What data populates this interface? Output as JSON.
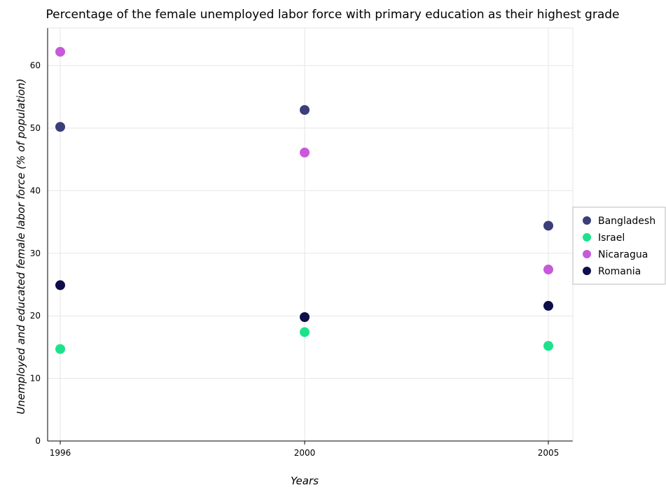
{
  "chart_data": {
    "type": "scatter",
    "title": "Percentage of the female unemployed labor force with primary education as their highest grade",
    "xlabel": "Years",
    "ylabel": "Unemployed and educated female labor force (% of population)",
    "categories": [
      "1996",
      "2000",
      "2005"
    ],
    "ylim": [
      0,
      66
    ],
    "yticks": [
      0,
      10,
      20,
      30,
      40,
      50,
      60
    ],
    "grid": true,
    "legend_position": "right",
    "series": [
      {
        "name": "Bangladesh",
        "color": "#3a3f7a",
        "values": [
          50.2,
          52.9,
          34.4
        ]
      },
      {
        "name": "Israel",
        "color": "#1de28c",
        "values": [
          14.7,
          17.4,
          15.2
        ]
      },
      {
        "name": "Nicaragua",
        "color": "#c75ad9",
        "values": [
          62.2,
          46.1,
          27.4
        ]
      },
      {
        "name": "Romania",
        "color": "#0e0e4a",
        "values": [
          24.9,
          19.8,
          21.6
        ]
      }
    ]
  }
}
